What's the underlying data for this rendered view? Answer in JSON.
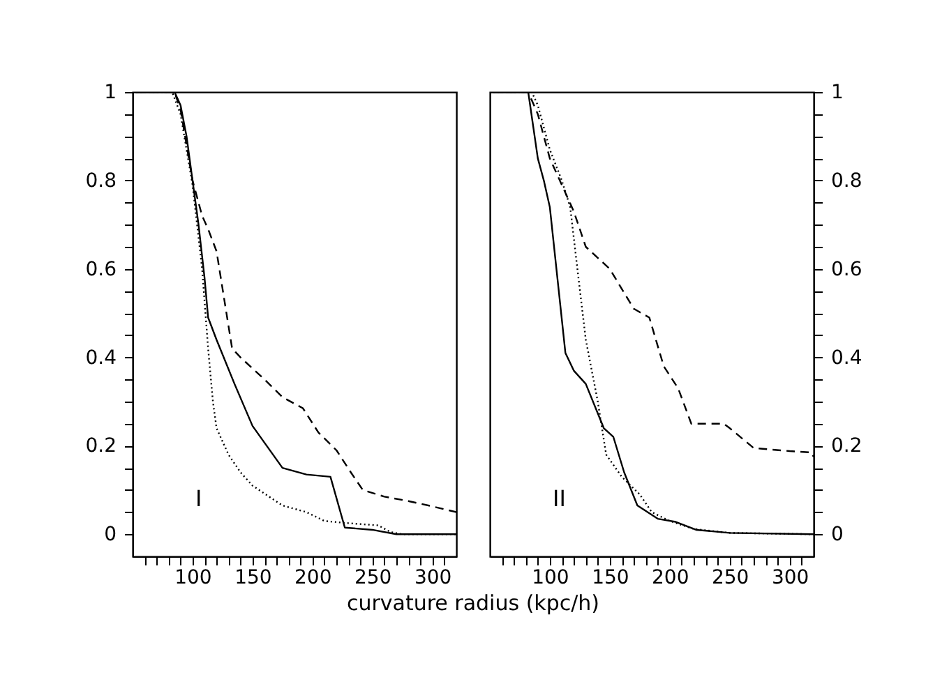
{
  "chart_data": [
    {
      "type": "line",
      "xlabel": "curvature radius (kpc/h)",
      "annotations": [
        "I"
      ],
      "xlim": [
        50,
        320
      ],
      "ylim": [
        -0.05,
        1.0
      ],
      "xticks": [
        {
          "value": 60,
          "label": null
        },
        {
          "value": 70,
          "label": null
        },
        {
          "value": 80,
          "label": null
        },
        {
          "value": 90,
          "label": null
        },
        100,
        {
          "value": 110,
          "label": null
        },
        {
          "value": 120,
          "label": null
        },
        {
          "value": 130,
          "label": null
        },
        {
          "value": 140,
          "label": null
        },
        150,
        {
          "value": 160,
          "label": null
        },
        {
          "value": 170,
          "label": null
        },
        {
          "value": 180,
          "label": null
        },
        {
          "value": 190,
          "label": null
        },
        200,
        {
          "value": 210,
          "label": null
        },
        {
          "value": 220,
          "label": null
        },
        {
          "value": 230,
          "label": null
        },
        {
          "value": 240,
          "label": null
        },
        250,
        {
          "value": 260,
          "label": null
        },
        {
          "value": 270,
          "label": null
        },
        {
          "value": 280,
          "label": null
        },
        {
          "value": 290,
          "label": null
        },
        300,
        {
          "value": 310,
          "label": null
        }
      ],
      "yticks": [
        0,
        {
          "value": 0.05,
          "label": null
        },
        {
          "value": 0.1,
          "label": null
        },
        {
          "value": 0.15,
          "label": null
        },
        0.2,
        {
          "value": 0.25,
          "label": null
        },
        {
          "value": 0.3,
          "label": null
        },
        {
          "value": 0.35,
          "label": null
        },
        0.4,
        {
          "value": 0.45,
          "label": null
        },
        {
          "value": 0.5,
          "label": null
        },
        {
          "value": 0.55,
          "label": null
        },
        0.6,
        {
          "value": 0.65,
          "label": null
        },
        {
          "value": 0.7,
          "label": null
        },
        {
          "value": 0.75,
          "label": null
        },
        0.8,
        {
          "value": 0.85,
          "label": null
        },
        {
          "value": 0.9,
          "label": null
        },
        {
          "value": 0.95,
          "label": null
        },
        1
      ],
      "grid": false,
      "legend": false,
      "series": [
        {
          "color": "#000000",
          "line_style": "solid",
          "x": [
            53,
            85,
            90,
            95,
            100,
            105,
            110,
            113,
            120,
            135,
            150,
            175,
            195,
            215,
            227,
            250,
            270,
            320
          ],
          "values": [
            1,
            1,
            0.97,
            0.9,
            0.8,
            0.7,
            0.58,
            0.49,
            0.44,
            0.34,
            0.245,
            0.15,
            0.135,
            0.13,
            0.015,
            0.01,
            0,
            0
          ]
        },
        {
          "color": "#000000",
          "line_style": "dashed",
          "x": [
            53,
            85,
            90,
            100,
            108,
            113,
            120,
            133,
            140,
            160,
            175,
            192,
            205,
            220,
            232,
            242,
            260,
            280,
            300,
            320
          ],
          "values": [
            1,
            1,
            0.96,
            0.8,
            0.72,
            0.69,
            0.64,
            0.42,
            0.4,
            0.35,
            0.31,
            0.285,
            0.23,
            0.19,
            0.14,
            0.1,
            0.085,
            0.075,
            0.063,
            0.05
          ]
        },
        {
          "color": "#000000",
          "line_style": "dotted",
          "x": [
            53,
            83,
            90,
            100,
            108,
            113,
            117,
            120,
            130,
            140,
            150,
            175,
            195,
            210,
            230,
            255,
            265,
            275,
            320
          ],
          "values": [
            1,
            1,
            0.95,
            0.79,
            0.6,
            0.42,
            0.3,
            0.24,
            0.18,
            0.14,
            0.11,
            0.065,
            0.05,
            0.03,
            0.025,
            0.02,
            0.005,
            0,
            0
          ]
        }
      ]
    },
    {
      "type": "line",
      "annotations": [
        "II"
      ],
      "xlim": [
        50,
        320
      ],
      "y2lim": [
        -0.05,
        1.0
      ],
      "xticks": [
        {
          "value": 60,
          "label": null
        },
        {
          "value": 70,
          "label": null
        },
        {
          "value": 80,
          "label": null
        },
        {
          "value": 90,
          "label": null
        },
        100,
        {
          "value": 110,
          "label": null
        },
        {
          "value": 120,
          "label": null
        },
        {
          "value": 130,
          "label": null
        },
        {
          "value": 140,
          "label": null
        },
        150,
        {
          "value": 160,
          "label": null
        },
        {
          "value": 170,
          "label": null
        },
        {
          "value": 180,
          "label": null
        },
        {
          "value": 190,
          "label": null
        },
        200,
        {
          "value": 210,
          "label": null
        },
        {
          "value": 220,
          "label": null
        },
        {
          "value": 230,
          "label": null
        },
        {
          "value": 240,
          "label": null
        },
        250,
        {
          "value": 260,
          "label": null
        },
        {
          "value": 270,
          "label": null
        },
        {
          "value": 280,
          "label": null
        },
        {
          "value": 290,
          "label": null
        },
        300,
        {
          "value": 310,
          "label": null
        }
      ],
      "y2ticks": [
        0,
        {
          "value": 0.05,
          "label": null
        },
        {
          "value": 0.1,
          "label": null
        },
        {
          "value": 0.15,
          "label": null
        },
        0.2,
        {
          "value": 0.25,
          "label": null
        },
        {
          "value": 0.3,
          "label": null
        },
        {
          "value": 0.35,
          "label": null
        },
        0.4,
        {
          "value": 0.45,
          "label": null
        },
        {
          "value": 0.5,
          "label": null
        },
        {
          "value": 0.55,
          "label": null
        },
        0.6,
        {
          "value": 0.65,
          "label": null
        },
        {
          "value": 0.7,
          "label": null
        },
        {
          "value": 0.75,
          "label": null
        },
        0.8,
        {
          "value": 0.85,
          "label": null
        },
        {
          "value": 0.9,
          "label": null
        },
        {
          "value": 0.95,
          "label": null
        },
        1
      ],
      "grid": false,
      "legend": false,
      "series": [
        {
          "color": "#000000",
          "line_style": "solid",
          "axis": "y2",
          "x": [
            53,
            82,
            90,
            95,
            100,
            113,
            120,
            130,
            145,
            153,
            162,
            173,
            190,
            205,
            222,
            250,
            320
          ],
          "values": [
            1,
            1,
            0.85,
            0.8,
            0.74,
            0.41,
            0.37,
            0.34,
            0.24,
            0.22,
            0.14,
            0.065,
            0.035,
            0.028,
            0.01,
            0.003,
            0
          ]
        },
        {
          "color": "#000000",
          "line_style": "dashed",
          "axis": "y2",
          "x": [
            53,
            82,
            90,
            100,
            110,
            120,
            130,
            150,
            170,
            183,
            195,
            207,
            218,
            245,
            250,
            270,
            300,
            318,
            320
          ],
          "values": [
            1,
            1,
            0.95,
            0.85,
            0.79,
            0.73,
            0.65,
            0.6,
            0.51,
            0.49,
            0.38,
            0.33,
            0.25,
            0.25,
            0.24,
            0.195,
            0.188,
            0.185,
            0.175
          ]
        },
        {
          "color": "#000000",
          "line_style": "dotted",
          "axis": "y2",
          "x": [
            53,
            85,
            90,
            100,
            110,
            117,
            123,
            130,
            140,
            147,
            160,
            175,
            185,
            200,
            220,
            250,
            320
          ],
          "values": [
            1,
            1,
            0.97,
            0.87,
            0.8,
            0.74,
            0.6,
            0.44,
            0.3,
            0.18,
            0.13,
            0.09,
            0.05,
            0.03,
            0.012,
            0.003,
            0
          ]
        }
      ]
    }
  ]
}
